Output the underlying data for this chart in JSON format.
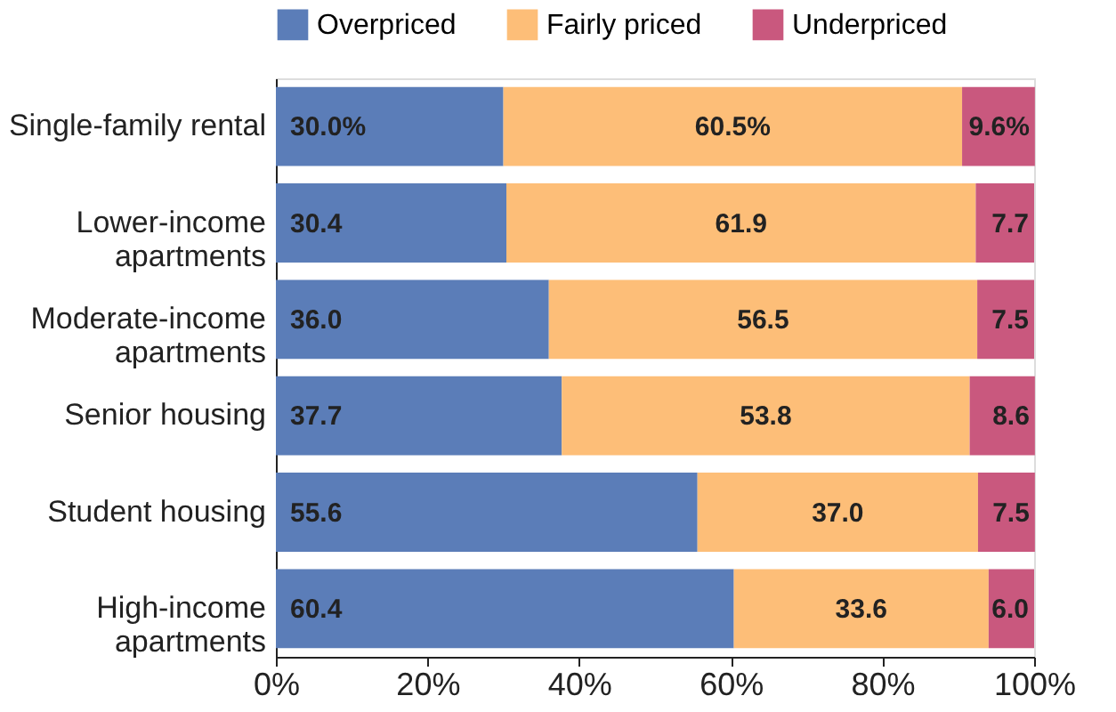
{
  "chart_data": {
    "type": "bar",
    "orientation": "horizontal",
    "stacked": true,
    "categories": [
      "Single-family rental",
      "Lower-income\napartments",
      "Moderate-income\napartments",
      "Senior housing",
      "Student housing",
      "High-income\napartments"
    ],
    "series": [
      {
        "name": "Overpriced",
        "color": "#5b7db8",
        "values": [
          30.0,
          30.4,
          36.0,
          37.7,
          55.6,
          60.4
        ],
        "value_labels": [
          "30.0%",
          "30.4",
          "36.0",
          "37.7",
          "55.6",
          "60.4"
        ]
      },
      {
        "name": "Fairly priced",
        "color": "#fdbe78",
        "values": [
          60.5,
          61.9,
          56.5,
          53.8,
          37.0,
          33.6
        ],
        "value_labels": [
          "60.5%",
          "61.9",
          "56.5",
          "53.8",
          "37.0",
          "33.6"
        ]
      },
      {
        "name": "Underpriced",
        "color": "#c9587e",
        "values": [
          9.6,
          7.7,
          7.5,
          8.6,
          7.5,
          6.0
        ],
        "value_labels": [
          "9.6%",
          "7.7",
          "7.5",
          "8.6",
          "7.5",
          "6.0"
        ]
      }
    ],
    "xlim": [
      0,
      100
    ],
    "xticks": [
      {
        "value": 0,
        "label": "0%"
      },
      {
        "value": 20,
        "label": "20%"
      },
      {
        "value": 40,
        "label": "40%"
      },
      {
        "value": 60,
        "label": "60%"
      },
      {
        "value": 80,
        "label": "80%"
      },
      {
        "value": 100,
        "label": "100%"
      }
    ],
    "grid": false,
    "legend": "top"
  }
}
